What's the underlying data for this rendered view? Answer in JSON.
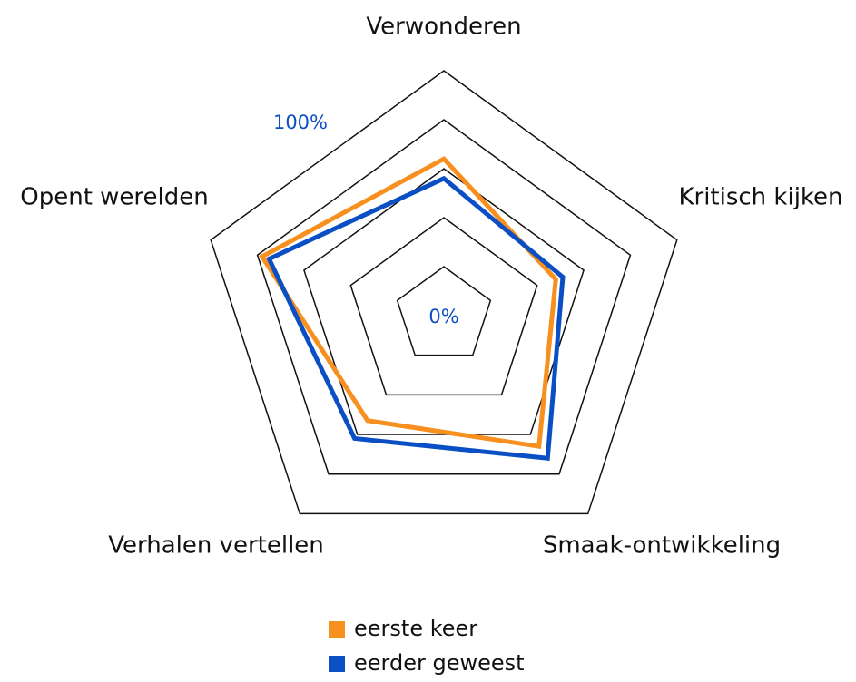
{
  "chart_data": {
    "type": "radar",
    "categories": [
      "Verwonderen",
      "Kritisch kijken",
      "Smaak-ontwikkeling",
      "Verhalen vertellen",
      "Opent werelden"
    ],
    "series": [
      {
        "name": "eerste keer",
        "color": "#f7901e",
        "values": [
          64,
          48,
          66,
          53,
          78
        ]
      },
      {
        "name": "eerder geweest",
        "color": "#0a4fc4",
        "values": [
          56,
          51,
          72,
          62,
          75
        ]
      }
    ],
    "rlim": [
      0,
      100
    ],
    "grid_rings": [
      20,
      40,
      60,
      80,
      100
    ],
    "rticks": [
      {
        "value": 0,
        "label": "0%"
      },
      {
        "value": 100,
        "label": "100%"
      }
    ],
    "tick_color": "#0a4fc4",
    "legend": "bottom"
  }
}
